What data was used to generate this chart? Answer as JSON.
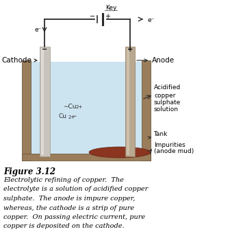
{
  "bg_color": "#ffffff",
  "tank_outer_color": "#9a7d5a",
  "tank_inner_color": "#cce4f0",
  "electrode_left_color": "#c0b8b0",
  "electrode_right_color": "#b0a090",
  "impurity_color": "#8b3520",
  "wire_color": "#2a2a2a",
  "text_color": "#000000",
  "title_text": "Figure 3.12",
  "caption_lines": [
    "Electrolytic refining of copper.  The",
    "electrolyte is a solution of acidified copper",
    "sulphate.  The anode is impure copper,",
    "whereas, the cathode is a strip of pure",
    "copper.  On passing electric current, pure",
    "copper is deposited on the cathode."
  ],
  "key_label": "Key",
  "cathode_label": "Cathode",
  "anode_label": "Anode",
  "solution_label": [
    "Acidified",
    "copper",
    "sulphate",
    "solution"
  ],
  "tank_label": "Tank",
  "impurity_label": [
    "Impurities",
    "(anode mud)"
  ],
  "electron_label": "e⁻",
  "minus_label": "−",
  "plus_label": "+"
}
